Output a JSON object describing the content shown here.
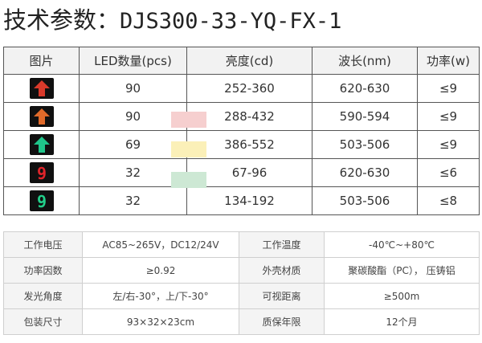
{
  "title": {
    "label": "技术参数：",
    "model": "DJS300-33-YQ-FX-1"
  },
  "spec_table": {
    "headers": [
      "图片",
      "LED数量(pcs)",
      "亮度(cd)",
      "波长(nm)",
      "功率(w)"
    ],
    "rows": [
      {
        "icon": "red-arrow-up-icon",
        "color": "#d93a2b",
        "led": "90",
        "brightness": "252-360",
        "wavelength": "620-630",
        "power": "≤9"
      },
      {
        "icon": "orange-arrow-up-icon",
        "color": "#e06a2a",
        "led": "90",
        "brightness": "288-432",
        "wavelength": "590-594",
        "power": "≤9"
      },
      {
        "icon": "green-arrow-up-icon",
        "color": "#1fc58a",
        "led": "69",
        "brightness": "386-552",
        "wavelength": "503-506",
        "power": "≤9"
      },
      {
        "icon": "red-digit-9-icon",
        "color": "#e0242a",
        "digit": "9",
        "led": "32",
        "brightness": "67-96",
        "wavelength": "620-630",
        "power": "≤6"
      },
      {
        "icon": "green-digit-9-icon",
        "color": "#22d08a",
        "digit": "9",
        "led": "32",
        "brightness": "134-192",
        "wavelength": "503-506",
        "power": "≤8"
      }
    ]
  },
  "swatches": {
    "red": "#f6cfcf",
    "yellow": "#fbf0b8",
    "green": "#cde8d4"
  },
  "params": [
    {
      "k1": "工作电压",
      "v1": "AC85~265V，DC12/24V",
      "k2": "工作温度",
      "v2": "-40℃~+80℃"
    },
    {
      "k1": "功率因数",
      "v1": "≥0.92",
      "k2": "外壳材质",
      "v2": "聚碳酸酯（PC），  压铸铝"
    },
    {
      "k1": "发光角度",
      "v1": "左/右-30°，上/下-30°",
      "k2": "可视距离",
      "v2": "≥500m"
    },
    {
      "k1": "包装尺寸",
      "v1": "93×32×23cm",
      "k2": "质保年限",
      "v2": "12个月"
    }
  ]
}
